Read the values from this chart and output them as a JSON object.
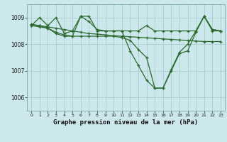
{
  "title": "Graphe pression niveau de la mer (hPa)",
  "background_color": "#cce8ec",
  "grid_color": "#aacccc",
  "line_color": "#2d6a2d",
  "xlim": [
    -0.5,
    23.5
  ],
  "ylim": [
    1005.5,
    1009.5
  ],
  "yticks": [
    1006,
    1007,
    1008,
    1009
  ],
  "xticks": [
    0,
    1,
    2,
    3,
    4,
    5,
    6,
    7,
    8,
    9,
    10,
    11,
    12,
    13,
    14,
    15,
    16,
    17,
    18,
    19,
    20,
    21,
    22,
    23
  ],
  "s1": [
    1008.7,
    1009.0,
    1008.7,
    1009.0,
    1008.4,
    1008.5,
    1009.05,
    1009.05,
    1008.5,
    1008.5,
    1008.5,
    1008.5,
    1008.5,
    1008.5,
    1008.7,
    1008.5,
    1008.5,
    1008.5,
    1008.5,
    1008.5,
    1008.5,
    1009.05,
    1008.5,
    1008.5
  ],
  "s2": [
    1008.75,
    1008.7,
    1008.65,
    1008.6,
    1008.55,
    1008.5,
    1008.45,
    1008.4,
    1008.38,
    1008.35,
    1008.32,
    1008.3,
    1008.28,
    1008.26,
    1008.24,
    1008.22,
    1008.2,
    1008.18,
    1008.16,
    1008.14,
    1008.12,
    1008.1,
    1008.1,
    1008.1
  ],
  "s3": [
    1008.7,
    1008.7,
    1008.6,
    1008.4,
    1008.3,
    1008.3,
    1009.05,
    1008.85,
    1008.55,
    1008.5,
    1008.5,
    1008.5,
    1007.75,
    1007.2,
    1006.65,
    1006.35,
    1006.35,
    1007.05,
    1007.7,
    1008.0,
    1008.5,
    1009.05,
    1008.55,
    1008.5
  ],
  "s4": [
    1008.7,
    1008.65,
    1008.6,
    1008.45,
    1008.35,
    1008.3,
    1008.3,
    1008.3,
    1008.3,
    1008.3,
    1008.3,
    1008.25,
    1008.15,
    1007.8,
    1007.5,
    1006.35,
    1006.35,
    1007.0,
    1007.65,
    1007.75,
    1008.45,
    1009.05,
    1008.55,
    1008.5
  ],
  "tick_fontsize": 5.5,
  "xlabel_fontsize": 6.5
}
